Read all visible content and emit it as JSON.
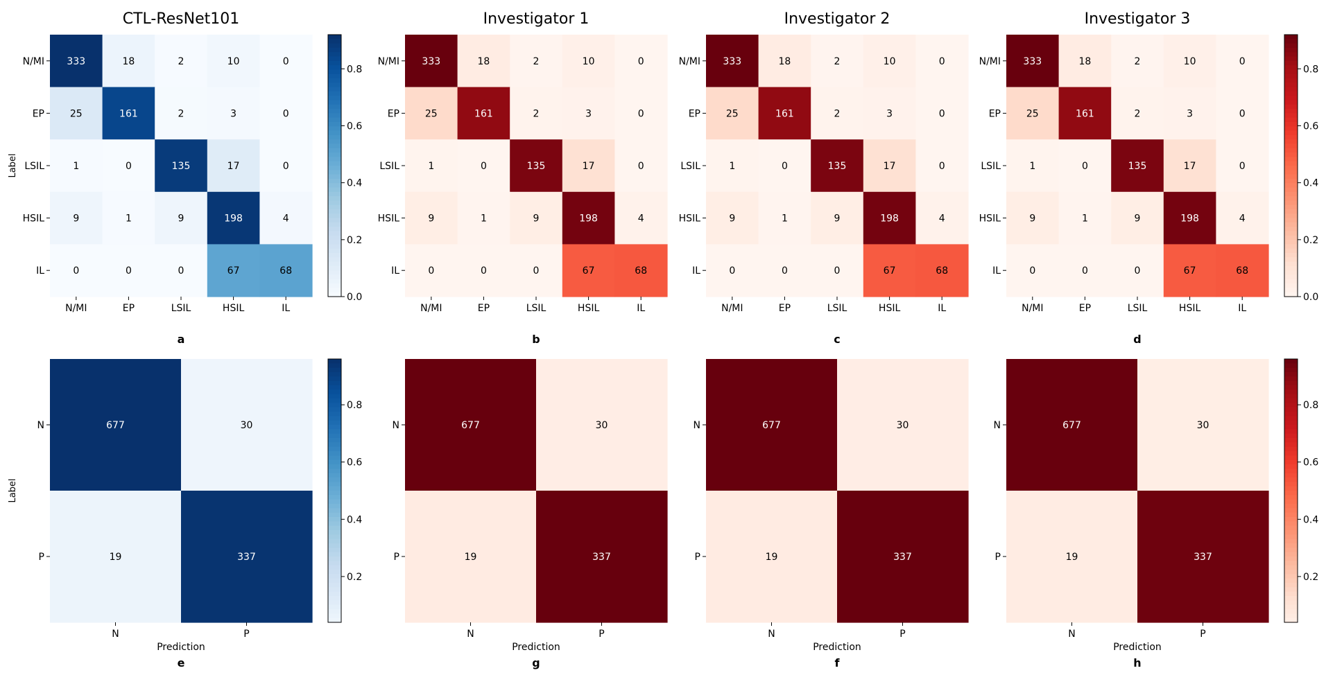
{
  "figure": {
    "panel_titles": [
      "CTL-ResNet101",
      "Investigator 1",
      "Investigator 2",
      "Investigator 3"
    ],
    "row_label": "Label",
    "x_label": "Prediction",
    "colormaps": {
      "blue": [
        "#f7fbff",
        "#08306b"
      ],
      "red": [
        "#fff5f0",
        "#67000d"
      ]
    }
  },
  "chart_data": [
    {
      "type": "heatmap",
      "panel_letter": "a",
      "title": "CTL-ResNet101",
      "ylabel": "Label",
      "xlabel": "",
      "x_categories": [
        "N/MI",
        "EP",
        "LSIL",
        "HSIL",
        "IL"
      ],
      "y_categories": [
        "N/MI",
        "EP",
        "LSIL",
        "HSIL",
        "IL"
      ],
      "values": [
        [
          333,
          18,
          2,
          10,
          0
        ],
        [
          25,
          161,
          2,
          3,
          0
        ],
        [
          1,
          0,
          135,
          17,
          0
        ],
        [
          9,
          1,
          9,
          198,
          4
        ],
        [
          0,
          0,
          0,
          67,
          68
        ]
      ],
      "colormap": "blue",
      "colorbar": {
        "range": [
          0,
          0.92
        ],
        "ticks": [
          "0.0",
          "0.2",
          "0.4",
          "0.6",
          "0.8"
        ]
      }
    },
    {
      "type": "heatmap",
      "panel_letter": "b",
      "title": "Investigator 1",
      "ylabel": "",
      "xlabel": "",
      "x_categories": [
        "N/MI",
        "EP",
        "LSIL",
        "HSIL",
        "IL"
      ],
      "y_categories": [
        "N/MI",
        "EP",
        "LSIL",
        "HSIL",
        "IL"
      ],
      "values": [
        [
          333,
          18,
          2,
          10,
          0
        ],
        [
          25,
          161,
          2,
          3,
          0
        ],
        [
          1,
          0,
          135,
          17,
          0
        ],
        [
          9,
          1,
          9,
          198,
          4
        ],
        [
          0,
          0,
          0,
          67,
          68
        ]
      ],
      "colormap": "red"
    },
    {
      "type": "heatmap",
      "panel_letter": "c",
      "title": "Investigator 2",
      "ylabel": "",
      "xlabel": "",
      "x_categories": [
        "N/MI",
        "EP",
        "LSIL",
        "HSIL",
        "IL"
      ],
      "y_categories": [
        "N/MI",
        "EP",
        "LSIL",
        "HSIL",
        "IL"
      ],
      "values": [
        [
          333,
          18,
          2,
          10,
          0
        ],
        [
          25,
          161,
          2,
          3,
          0
        ],
        [
          1,
          0,
          135,
          17,
          0
        ],
        [
          9,
          1,
          9,
          198,
          4
        ],
        [
          0,
          0,
          0,
          67,
          68
        ]
      ],
      "colormap": "red"
    },
    {
      "type": "heatmap",
      "panel_letter": "d",
      "title": "Investigator 3",
      "ylabel": "",
      "xlabel": "",
      "x_categories": [
        "N/MI",
        "EP",
        "LSIL",
        "HSIL",
        "IL"
      ],
      "y_categories": [
        "N/MI",
        "EP",
        "LSIL",
        "HSIL",
        "IL"
      ],
      "values": [
        [
          333,
          18,
          2,
          10,
          0
        ],
        [
          25,
          161,
          2,
          3,
          0
        ],
        [
          1,
          0,
          135,
          17,
          0
        ],
        [
          9,
          1,
          9,
          198,
          4
        ],
        [
          0,
          0,
          0,
          67,
          68
        ]
      ],
      "colormap": "red",
      "colorbar": {
        "range": [
          0,
          0.92
        ],
        "ticks": [
          "0.0",
          "0.2",
          "0.4",
          "0.6",
          "0.8"
        ]
      }
    },
    {
      "type": "heatmap",
      "panel_letter": "e",
      "title": "",
      "ylabel": "Label",
      "xlabel": "Prediction",
      "x_categories": [
        "N",
        "P"
      ],
      "y_categories": [
        "N",
        "P"
      ],
      "values": [
        [
          677,
          30
        ],
        [
          19,
          337
        ]
      ],
      "colormap": "blue",
      "colorbar": {
        "range": [
          0.04,
          0.96
        ],
        "ticks": [
          "0.2",
          "0.4",
          "0.6",
          "0.8"
        ]
      }
    },
    {
      "type": "heatmap",
      "panel_letter": "g",
      "title": "",
      "ylabel": "",
      "xlabel": "Prediction",
      "x_categories": [
        "N",
        "P"
      ],
      "y_categories": [
        "N",
        "P"
      ],
      "values": [
        [
          677,
          30
        ],
        [
          19,
          337
        ]
      ],
      "colormap": "red"
    },
    {
      "type": "heatmap",
      "panel_letter": "f",
      "title": "",
      "ylabel": "",
      "xlabel": "Prediction",
      "x_categories": [
        "N",
        "P"
      ],
      "y_categories": [
        "N",
        "P"
      ],
      "values": [
        [
          677,
          30
        ],
        [
          19,
          337
        ]
      ],
      "colormap": "red"
    },
    {
      "type": "heatmap",
      "panel_letter": "h",
      "title": "",
      "ylabel": "",
      "xlabel": "Prediction",
      "x_categories": [
        "N",
        "P"
      ],
      "y_categories": [
        "N",
        "P"
      ],
      "values": [
        [
          677,
          30
        ],
        [
          19,
          337
        ]
      ],
      "colormap": "red",
      "colorbar": {
        "range": [
          0.04,
          0.96
        ],
        "ticks": [
          "0.2",
          "0.4",
          "0.6",
          "0.8"
        ]
      }
    }
  ]
}
